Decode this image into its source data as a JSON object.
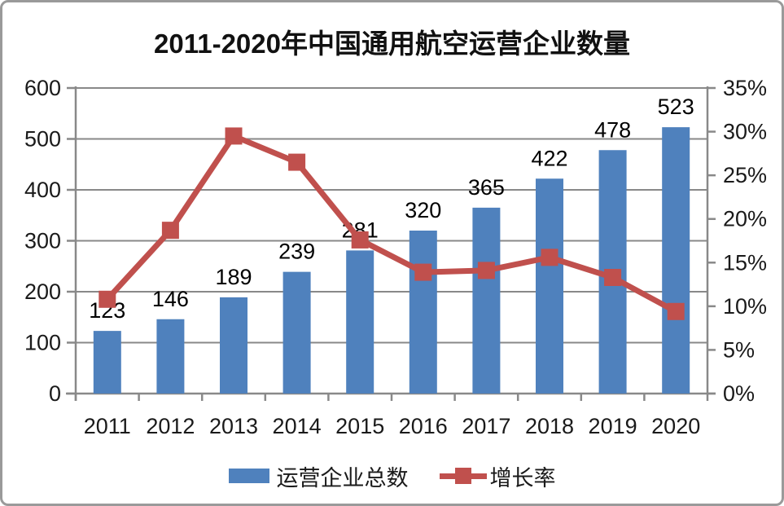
{
  "title": "2011-2020年中国通用航空运营企业数量",
  "legend": {
    "items": [
      {
        "label": "运营企业总数",
        "type": "bar",
        "color": "#4F81BD"
      },
      {
        "label": "增长率",
        "type": "line",
        "color": "#C0504D"
      }
    ]
  },
  "colors": {
    "bar": "#4F81BD",
    "line": "#C0504D",
    "grid": "#898989",
    "axis": "#898989",
    "text": "#1a1a1a",
    "data_label": "#000000",
    "frame_border": "#9a9a9a",
    "background": "#ffffff"
  },
  "chart_data": {
    "type": "combo",
    "subtypes": [
      "bar",
      "line"
    ],
    "title": "2011-2020年中国通用航空运营企业数量",
    "categories": [
      "2011",
      "2012",
      "2013",
      "2014",
      "2015",
      "2016",
      "2017",
      "2018",
      "2019",
      "2020"
    ],
    "series": [
      {
        "name": "运营企业总数",
        "type": "bar",
        "axis": "left",
        "color": "#4F81BD",
        "values": [
          123,
          146,
          189,
          239,
          281,
          320,
          365,
          422,
          478,
          523
        ],
        "data_labels_visible": true
      },
      {
        "name": "增长率",
        "type": "line",
        "axis": "right",
        "color": "#C0504D",
        "marker": "square",
        "values_percent": [
          10.8,
          18.7,
          29.5,
          26.5,
          17.6,
          13.9,
          14.1,
          15.6,
          13.3,
          9.4
        ],
        "data_labels_visible": false
      }
    ],
    "left_axis": {
      "min": 0,
      "max": 600,
      "step": 100,
      "tick_labels": [
        "0",
        "100",
        "200",
        "300",
        "400",
        "500",
        "600"
      ]
    },
    "right_axis": {
      "min": 0,
      "max": 35,
      "step": 5,
      "tick_labels": [
        "0%",
        "5%",
        "10%",
        "15%",
        "20%",
        "25%",
        "30%",
        "35%"
      ]
    },
    "grid": true,
    "legend_position": "bottom"
  }
}
